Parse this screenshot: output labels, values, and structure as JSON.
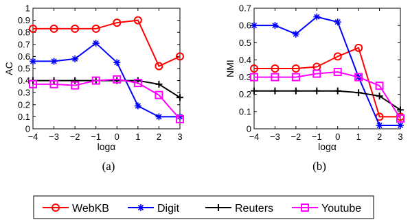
{
  "chart_data": [
    {
      "type": "line",
      "caption": "(a)",
      "xlabel": "logα",
      "ylabel": "AC",
      "x": [
        -4,
        -3,
        -2,
        -1,
        0,
        1,
        2,
        3
      ],
      "xlim": [
        -4,
        3
      ],
      "ylim": [
        0,
        1
      ],
      "xticks": [
        "−4",
        "−3",
        "−2",
        "−1",
        "0",
        "1",
        "2",
        "3"
      ],
      "yticks": [
        "0",
        "0.1",
        "0.2",
        "0.3",
        "0.4",
        "0.5",
        "0.6",
        "0.7",
        "0.8",
        "0.9",
        "1"
      ],
      "series": [
        {
          "name": "WebKB",
          "values": [
            0.83,
            0.83,
            0.83,
            0.83,
            0.88,
            0.9,
            0.52,
            0.6
          ]
        },
        {
          "name": "Digit",
          "values": [
            0.56,
            0.56,
            0.58,
            0.71,
            0.55,
            0.19,
            0.1,
            0.1
          ]
        },
        {
          "name": "Reuters",
          "values": [
            0.4,
            0.4,
            0.4,
            0.4,
            0.4,
            0.4,
            0.37,
            0.26
          ]
        },
        {
          "name": "Youtube",
          "values": [
            0.37,
            0.37,
            0.36,
            0.4,
            0.41,
            0.38,
            0.28,
            0.08
          ]
        }
      ]
    },
    {
      "type": "line",
      "caption": "(b)",
      "xlabel": "logα",
      "ylabel": "NMI",
      "x": [
        -4,
        -3,
        -2,
        -1,
        0,
        1,
        2,
        3
      ],
      "xlim": [
        -4,
        3
      ],
      "ylim": [
        0,
        0.7
      ],
      "xticks": [
        "−4",
        "−3",
        "−2",
        "−1",
        "0",
        "1",
        "2",
        "3"
      ],
      "yticks": [
        "0",
        "0.1",
        "0.2",
        "0.3",
        "0.4",
        "0.5",
        "0.6",
        "0.7"
      ],
      "series": [
        {
          "name": "WebKB",
          "values": [
            0.35,
            0.35,
            0.35,
            0.36,
            0.42,
            0.47,
            0.07,
            0.07
          ]
        },
        {
          "name": "Digit",
          "values": [
            0.6,
            0.6,
            0.55,
            0.65,
            0.62,
            0.3,
            0.02,
            0.02
          ]
        },
        {
          "name": "Reuters",
          "values": [
            0.22,
            0.22,
            0.22,
            0.22,
            0.22,
            0.21,
            0.19,
            0.11
          ]
        },
        {
          "name": "Youtube",
          "values": [
            0.3,
            0.3,
            0.3,
            0.32,
            0.33,
            0.3,
            0.25,
            0.06
          ]
        }
      ]
    }
  ],
  "legend": {
    "placement": "bottom-center",
    "items": [
      {
        "name": "WebKB",
        "color": "#ff0000",
        "marker": "circle"
      },
      {
        "name": "Digit",
        "color": "#0000ff",
        "marker": "asterisk"
      },
      {
        "name": "Reuters",
        "color": "#000000",
        "marker": "plus"
      },
      {
        "name": "Youtube",
        "color": "#ff00ff",
        "marker": "square"
      }
    ]
  }
}
